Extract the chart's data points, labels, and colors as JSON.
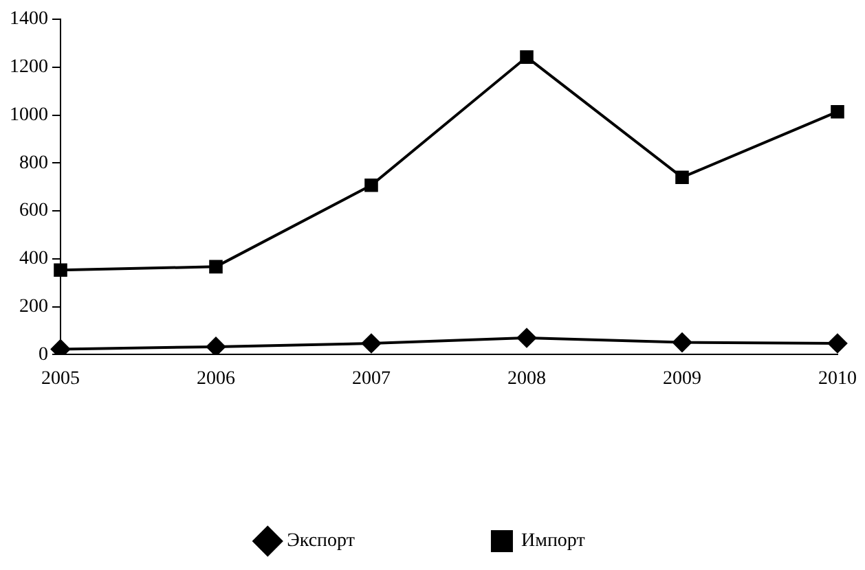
{
  "chart_data": {
    "type": "line",
    "categories": [
      "2005",
      "2006",
      "2007",
      "2008",
      "2009",
      "2010"
    ],
    "series": [
      {
        "name": "Экспорт",
        "color": "#000000",
        "marker": "diamond",
        "values": [
          23,
          33,
          47,
          70,
          51,
          47
        ]
      },
      {
        "name": "Импорт",
        "color": "#000000",
        "marker": "square",
        "values": [
          353,
          367,
          707,
          1242,
          740,
          1014
        ]
      }
    ],
    "ylim": [
      0,
      1400
    ],
    "yticks": [
      0,
      200,
      400,
      600,
      800,
      1000,
      1200,
      1400
    ],
    "grid": false,
    "legend": "bottom",
    "line_style": "solid"
  }
}
